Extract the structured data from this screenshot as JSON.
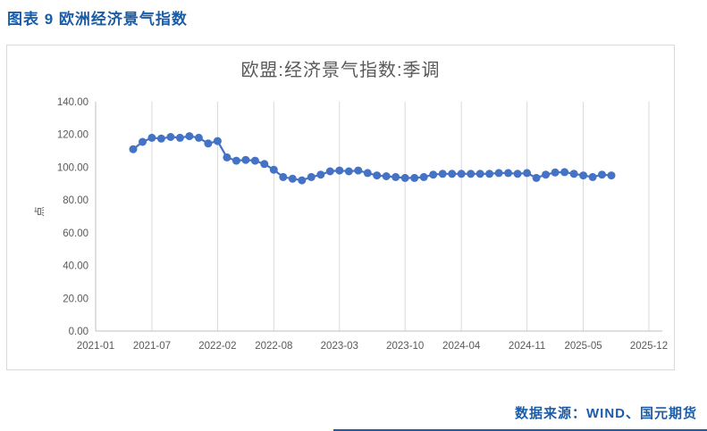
{
  "figure": {
    "caption": "图表 9  欧洲经济景气指数"
  },
  "footer": {
    "source": "数据来源：WIND、国元期货"
  },
  "colors": {
    "accent_blue": "#1A5CA8",
    "series_blue": "#4472C4",
    "text_gray": "#595959",
    "grid_gray": "#D9D9D9",
    "axis_gray": "#BFBFBF",
    "box_border": "#D9D9D9"
  },
  "chart_data": {
    "type": "line",
    "title": "欧盟:经济景气指数:季调",
    "xlabel": "",
    "ylabel": "点",
    "ylim": [
      0,
      140
    ],
    "ytick_step": 20,
    "ytick_decimals": 2,
    "grid": "vertical-only",
    "legend_position": "none",
    "marker": "circle",
    "x_axis_start": "2021-01",
    "x_axis_end": "2025-12",
    "xticks": [
      "2021-01",
      "2021-07",
      "2022-02",
      "2022-08",
      "2023-03",
      "2023-10",
      "2024-04",
      "2024-11",
      "2025-05",
      "2025-12"
    ],
    "series": [
      {
        "name": "欧盟:经济景气指数:季调",
        "x": [
          "2021-05",
          "2021-06",
          "2021-07",
          "2021-08",
          "2021-09",
          "2021-10",
          "2021-11",
          "2021-12",
          "2022-01",
          "2022-02",
          "2022-03",
          "2022-04",
          "2022-05",
          "2022-06",
          "2022-07",
          "2022-08",
          "2022-09",
          "2022-10",
          "2022-11",
          "2022-12",
          "2023-01",
          "2023-02",
          "2023-03",
          "2023-04",
          "2023-05",
          "2023-06",
          "2023-07",
          "2023-08",
          "2023-09",
          "2023-10",
          "2023-11",
          "2023-12",
          "2024-01",
          "2024-02",
          "2024-03",
          "2024-04",
          "2024-05",
          "2024-06",
          "2024-07",
          "2024-08",
          "2024-09",
          "2024-10",
          "2024-11",
          "2024-12",
          "2025-01",
          "2025-02",
          "2025-03",
          "2025-04",
          "2025-05",
          "2025-06",
          "2025-07",
          "2025-08"
        ],
        "values": [
          111.0,
          115.5,
          118.0,
          117.5,
          118.5,
          118.0,
          119.0,
          118.0,
          114.5,
          116.0,
          106.0,
          104.0,
          104.5,
          104.0,
          102.0,
          98.5,
          94.0,
          93.0,
          92.0,
          94.0,
          95.5,
          97.5,
          98.0,
          97.5,
          98.0,
          96.5,
          95.0,
          94.5,
          94.0,
          93.5,
          93.5,
          94.0,
          95.5,
          96.0,
          96.0,
          96.0,
          96.0,
          96.0,
          96.0,
          96.5,
          96.5,
          96.0,
          96.5,
          93.5,
          95.5,
          96.8,
          97.0,
          96.0,
          95.0,
          94.0,
          95.5,
          95.0
        ]
      }
    ]
  }
}
